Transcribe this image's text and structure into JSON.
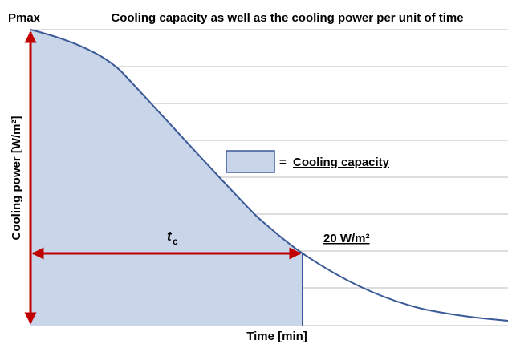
{
  "header": {
    "corner_label": "Pmax",
    "title": "Cooling capacity as well as the cooling power per unit of time"
  },
  "axes": {
    "y_label": "Cooling power [W/m²]",
    "x_label": "Time [min]"
  },
  "legend": {
    "equals": "=",
    "label": "Cooling capacity"
  },
  "annotations": {
    "duration": {
      "symbol": "t",
      "subscript": "c"
    },
    "threshold": "20 W/m²"
  }
}
